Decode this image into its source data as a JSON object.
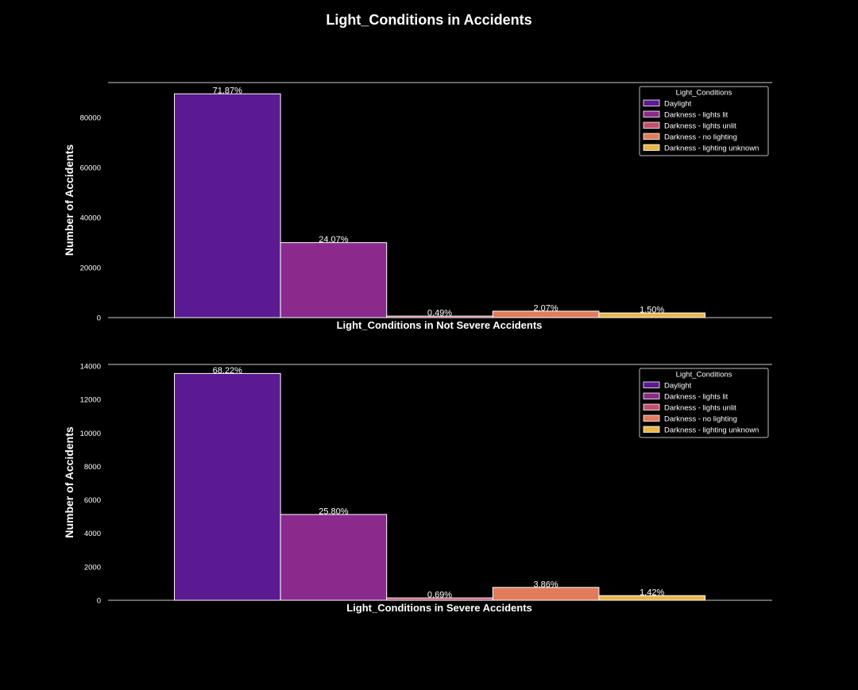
{
  "figure": {
    "title": "Light_Conditions in Accidents",
    "background": "#000000",
    "foreground": "#ffffff"
  },
  "palette": [
    "#5b1a91",
    "#8a2a8c",
    "#c0506e",
    "#e07c5c",
    "#eab64a"
  ],
  "chart_data": [
    {
      "type": "bar",
      "xlabel": "Light_Conditions in Not Severe Accidents",
      "ylabel": "Number of Accidents",
      "ylim": [
        0,
        94000
      ],
      "yticks": [
        0,
        20000,
        40000,
        60000,
        80000
      ],
      "categories": [
        "Daylight",
        "Darkness - lights lit",
        "Darkness - lights unlit",
        "Darkness - no lighting",
        "Darkness - lighting unknown"
      ],
      "values": [
        89500,
        29970,
        610,
        2580,
        1870
      ],
      "labels": [
        "71.87%",
        "24.07%",
        "0.49%",
        "2.07%",
        "1.50%"
      ],
      "legend": {
        "title": "Light_Conditions",
        "position": "top-right"
      }
    },
    {
      "type": "bar",
      "xlabel": "Light_Conditions in Severe Accidents",
      "ylabel": "Number of Accidents",
      "ylim": [
        0,
        14100
      ],
      "yticks": [
        0,
        2000,
        4000,
        6000,
        8000,
        10000,
        12000,
        14000
      ],
      "categories": [
        "Daylight",
        "Darkness - lights lit",
        "Darkness - lights unlit",
        "Darkness - no lighting",
        "Darkness - lighting unknown"
      ],
      "values": [
        13560,
        5130,
        140,
        770,
        280
      ],
      "labels": [
        "68.22%",
        "25.80%",
        "0.69%",
        "3.86%",
        "1.42%"
      ],
      "legend": {
        "title": "Light_Conditions",
        "position": "top-right"
      }
    }
  ]
}
